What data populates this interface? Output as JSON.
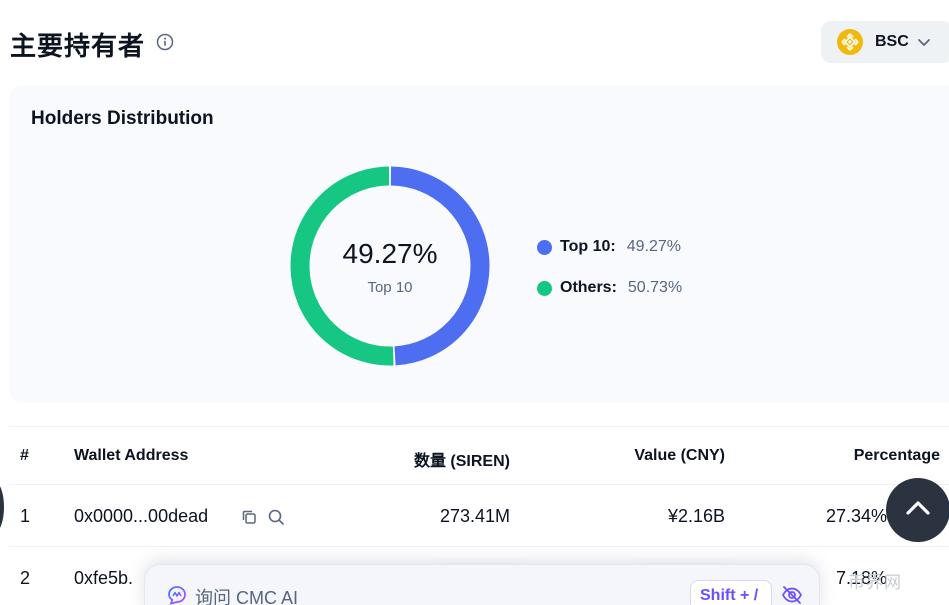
{
  "header": {
    "title": "主要持有者",
    "chain": {
      "label": "BSC",
      "logo_color": "#f0b90b"
    }
  },
  "distribution": {
    "title": "Holders Distribution",
    "center_value": "49.27%",
    "center_label": "Top 10",
    "legend": [
      {
        "label": "Top 10:",
        "value": "49.27%",
        "color": "#4d6ef0",
        "fraction": 0.4927
      },
      {
        "label": "Others:",
        "value": "50.73%",
        "color": "#16c784",
        "fraction": 0.5073
      }
    ]
  },
  "table": {
    "headers": [
      "#",
      "Wallet Address",
      "数量 (SIREN)",
      "Value (CNY)",
      "Percentage"
    ],
    "rows": [
      {
        "rank": "1",
        "address": "0x0000...00dead",
        "amount": "273.41M",
        "value": "¥2.16B",
        "percentage": "27.34%"
      },
      {
        "rank": "2",
        "address": "0xfe5b.",
        "amount": "",
        "value": "",
        "percentage": "7.18%"
      }
    ]
  },
  "ai_bar": {
    "label": "询问 CMC AI",
    "shortcut": "Shift + /"
  },
  "watermark": "币界网"
}
